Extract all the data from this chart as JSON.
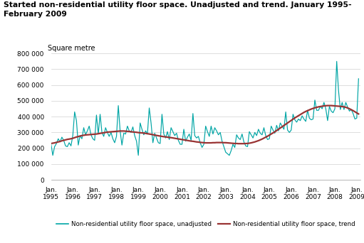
{
  "title_line1": "Started non-residential utility floor space. Unadjusted and trend. January 1995-",
  "title_line2": "February 2009",
  "ylabel": "Square metre",
  "ylim": [
    0,
    800000
  ],
  "yticks": [
    0,
    100000,
    200000,
    300000,
    400000,
    500000,
    600000,
    700000,
    800000
  ],
  "ytick_labels": [
    "0",
    "100 000",
    "200 000",
    "300 000",
    "400 000",
    "500 000",
    "600 000",
    "700 000",
    "800 000"
  ],
  "xtick_years": [
    1995,
    1996,
    1997,
    1998,
    1999,
    2000,
    2001,
    2002,
    2003,
    2004,
    2005,
    2006,
    2007,
    2008,
    2009
  ],
  "unadjusted_color": "#00A5A5",
  "trend_color": "#993333",
  "legend_unadjusted": "Non-residential utility floor space, unadjusted",
  "legend_trend": "Non-residential utility floor space, trend",
  "background_color": "#ffffff",
  "unadjusted": [
    230000,
    155000,
    210000,
    230000,
    260000,
    240000,
    270000,
    250000,
    215000,
    210000,
    235000,
    215000,
    280000,
    430000,
    375000,
    220000,
    280000,
    260000,
    330000,
    285000,
    310000,
    340000,
    285000,
    260000,
    250000,
    410000,
    290000,
    415000,
    300000,
    275000,
    330000,
    300000,
    275000,
    300000,
    260000,
    235000,
    275000,
    470000,
    310000,
    220000,
    295000,
    290000,
    340000,
    310000,
    300000,
    335000,
    280000,
    245000,
    155000,
    360000,
    320000,
    285000,
    310000,
    290000,
    455000,
    360000,
    235000,
    295000,
    265000,
    235000,
    230000,
    415000,
    290000,
    265000,
    305000,
    255000,
    330000,
    305000,
    280000,
    295000,
    250000,
    225000,
    225000,
    320000,
    245000,
    270000,
    290000,
    250000,
    420000,
    280000,
    265000,
    275000,
    235000,
    205000,
    225000,
    340000,
    305000,
    275000,
    340000,
    290000,
    330000,
    310000,
    285000,
    300000,
    245000,
    210000,
    175000,
    165000,
    155000,
    185000,
    225000,
    205000,
    285000,
    265000,
    255000,
    290000,
    240000,
    215000,
    210000,
    305000,
    285000,
    265000,
    300000,
    280000,
    320000,
    295000,
    285000,
    330000,
    280000,
    255000,
    260000,
    340000,
    315000,
    295000,
    345000,
    310000,
    360000,
    340000,
    320000,
    430000,
    315000,
    300000,
    315000,
    415000,
    380000,
    365000,
    385000,
    375000,
    405000,
    385000,
    370000,
    440000,
    390000,
    380000,
    385000,
    505000,
    440000,
    440000,
    465000,
    450000,
    490000,
    450000,
    375000,
    465000,
    435000,
    425000,
    450000,
    750000,
    565000,
    445000,
    490000,
    445000,
    490000,
    460000,
    435000,
    445000,
    420000,
    385000,
    390000,
    640000
  ],
  "trend": [
    230000,
    232000,
    234000,
    237000,
    240000,
    243000,
    247000,
    250000,
    253000,
    256000,
    258000,
    260000,
    263000,
    267000,
    271000,
    274000,
    277000,
    280000,
    282000,
    284000,
    285000,
    286000,
    287000,
    288000,
    289000,
    290000,
    292000,
    294000,
    296000,
    298000,
    300000,
    302000,
    303000,
    304000,
    305000,
    306000,
    307000,
    308000,
    309000,
    309000,
    309000,
    308000,
    307000,
    306000,
    305000,
    303000,
    302000,
    301000,
    299000,
    298000,
    297000,
    296000,
    294000,
    292000,
    290000,
    288000,
    286000,
    283000,
    281000,
    279000,
    277000,
    275000,
    273000,
    272000,
    270000,
    268000,
    267000,
    265000,
    263000,
    261000,
    259000,
    257000,
    255000,
    253000,
    251000,
    249000,
    247000,
    245000,
    244000,
    242000,
    240000,
    239000,
    237000,
    236000,
    235000,
    234000,
    234000,
    234000,
    234000,
    235000,
    235000,
    236000,
    236000,
    236000,
    236000,
    235000,
    235000,
    234000,
    233000,
    232000,
    231000,
    230000,
    230000,
    229000,
    229000,
    229000,
    229000,
    230000,
    230000,
    232000,
    234000,
    237000,
    240000,
    244000,
    248000,
    253000,
    258000,
    264000,
    270000,
    276000,
    283000,
    290000,
    297000,
    304000,
    312000,
    320000,
    328000,
    336000,
    344000,
    352000,
    360000,
    368000,
    376000,
    384000,
    392000,
    399000,
    406000,
    413000,
    420000,
    427000,
    433000,
    438000,
    443000,
    448000,
    452000,
    456000,
    459000,
    462000,
    464000,
    466000,
    468000,
    469000,
    470000,
    470000,
    470000,
    469000,
    468000,
    467000,
    466000,
    465000,
    464000,
    462000,
    459000,
    455000,
    450000,
    444000,
    438000,
    431000,
    424000,
    417000
  ]
}
